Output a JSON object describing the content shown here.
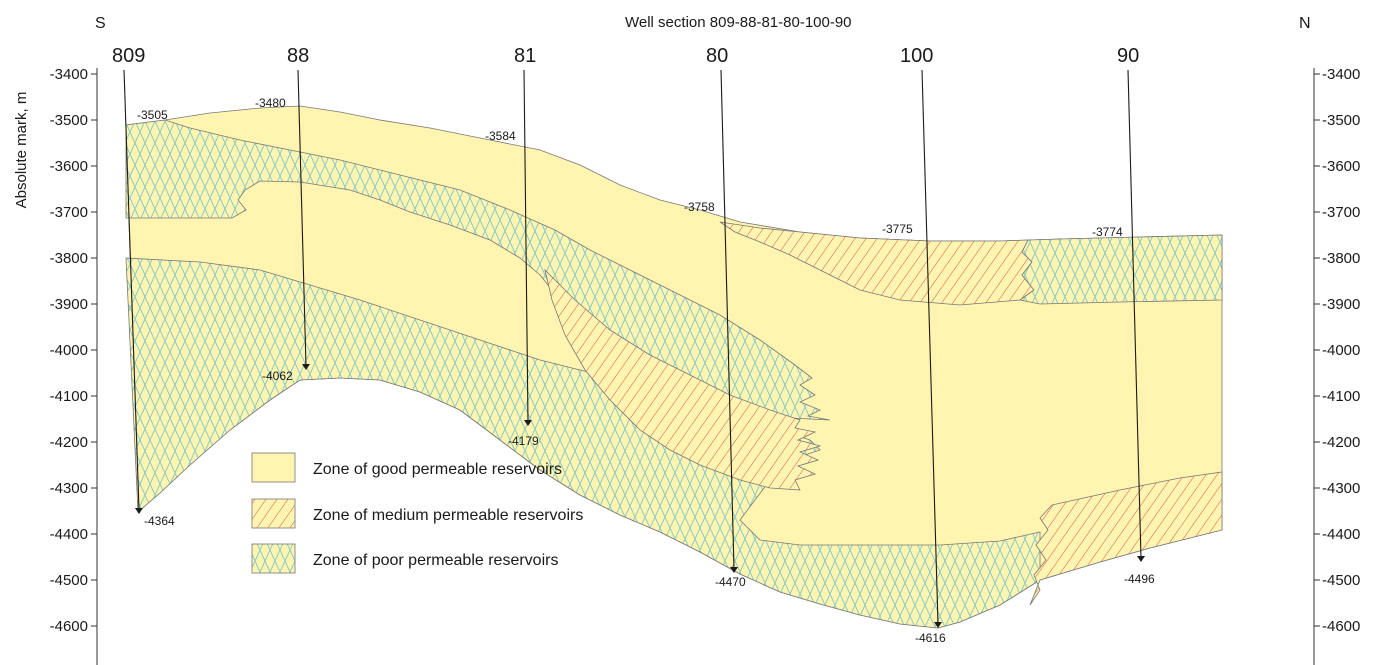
{
  "header": {
    "south": "S",
    "title": "Well section  809-88-81-80-100-90",
    "north": "N"
  },
  "axis": {
    "ylabel": "Absolute mark, m",
    "ticks": [
      "-3400",
      "-3500",
      "-3600",
      "-3700",
      "-3800",
      "-3900",
      "-4000",
      "-4100",
      "-4200",
      "-4300",
      "-4400",
      "-4500",
      "-4600"
    ]
  },
  "wells": [
    {
      "name": "809",
      "top": "-3505",
      "bottom": "-4364"
    },
    {
      "name": "88",
      "top": "-3480",
      "bottom": "-4062"
    },
    {
      "name": "81",
      "top": "-3584",
      "bottom": "-4179"
    },
    {
      "name": "80",
      "top": "-3758",
      "bottom": "-4470"
    },
    {
      "name": "100",
      "top": "-3775",
      "bottom": "-4616"
    },
    {
      "name": "90",
      "top": "-3774",
      "bottom": "-4496"
    }
  ],
  "legend": [
    {
      "label": "Zone of good permeable reservoirs",
      "pattern": "good"
    },
    {
      "label": "Zone of medium permeable reservoirs",
      "pattern": "medium"
    },
    {
      "label": "Zone of poor permeable reservoirs",
      "pattern": "poor"
    }
  ],
  "colors": {
    "good_fill": "#fff5b0",
    "medium_hatch": "#d9544a",
    "poor_hatch": "#7fc9c9",
    "outline": "#777777"
  }
}
